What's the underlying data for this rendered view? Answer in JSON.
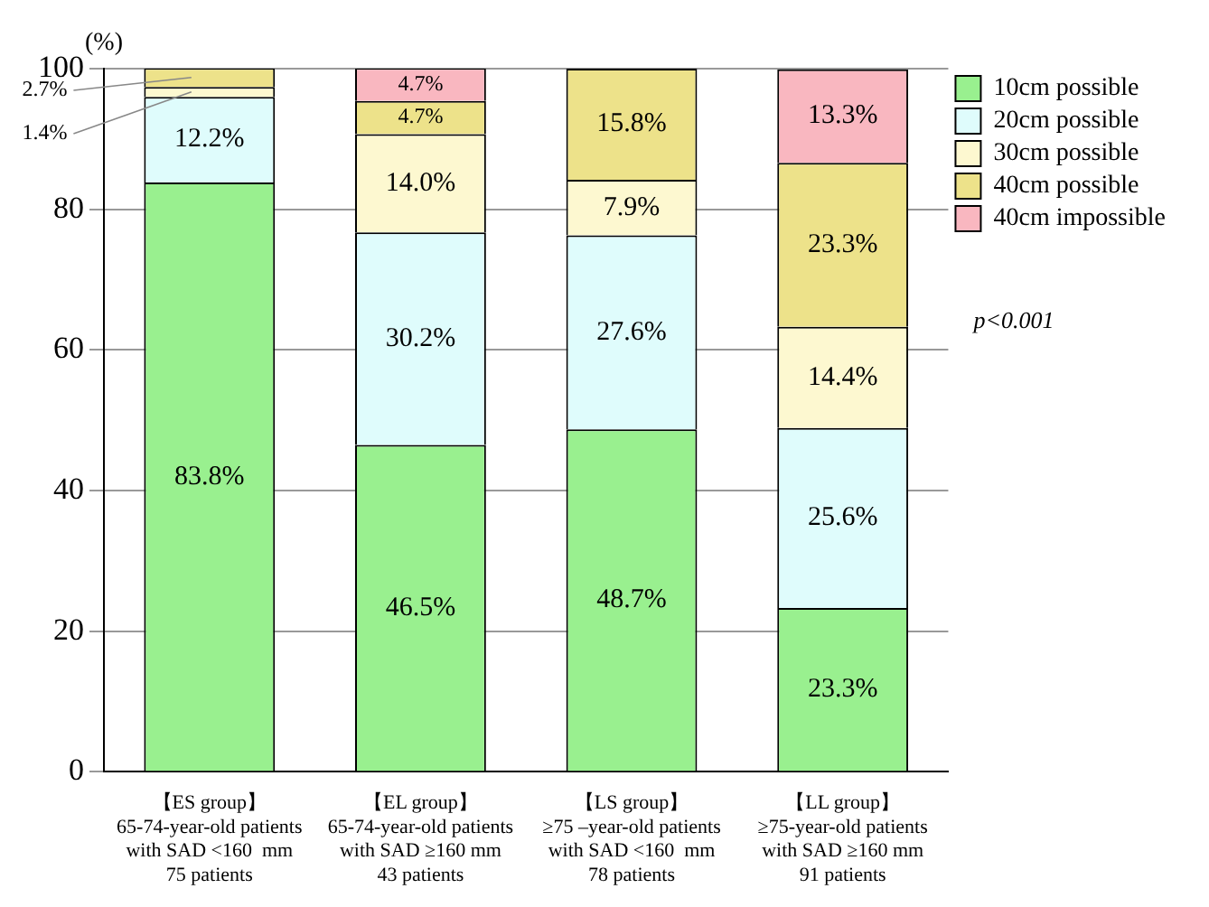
{
  "chart_data": {
    "type": "bar",
    "stacked": true,
    "ylabel": "(%)",
    "categories": [
      "【ES group】\n65-74-year-old patients\nwith SAD <160  mm\n75 patients",
      "【EL group】\n65-74-year-old patients\nwith SAD ≥160 mm\n43 patients",
      "【LS group】\n≥75 –year-old patients\nwith SAD <160  mm\n78 patients",
      "【LL group】\n≥75-year-old patients\nwith SAD ≥160 mm\n91 patients"
    ],
    "series": [
      {
        "name": "10cm possible",
        "color": "#99f08f",
        "values": [
          83.8,
          46.5,
          48.7,
          23.3
        ],
        "value_labels": [
          "83.8%",
          "46.5%",
          "48.7%",
          "23.3%"
        ]
      },
      {
        "name": "20cm possible",
        "color": "#dffcfc",
        "values": [
          12.2,
          30.2,
          27.6,
          25.6
        ],
        "value_labels": [
          "12.2%",
          "30.2%",
          "27.6%",
          "25.6%"
        ]
      },
      {
        "name": "30cm possible",
        "color": "#fdf8d0",
        "values": [
          1.4,
          14.0,
          7.9,
          14.4
        ],
        "value_labels": [
          "1.4%",
          "14.0%",
          "7.9%",
          "14.4%"
        ]
      },
      {
        "name": "40cm possible",
        "color": "#ede28a",
        "values": [
          2.7,
          4.7,
          15.8,
          23.3
        ],
        "value_labels": [
          "2.7%",
          "4.7%",
          "15.8%",
          "23.3%"
        ]
      },
      {
        "name": "40cm impossible",
        "color": "#f9b7c0",
        "values": [
          0,
          4.7,
          0,
          13.3
        ],
        "value_labels": [
          null,
          "4.7%",
          null,
          "13.3%"
        ]
      }
    ],
    "ylim": [
      0,
      100
    ],
    "yticks": [
      0,
      20,
      40,
      60,
      80,
      100
    ],
    "grid": "y",
    "legend": "top right",
    "annotations": [
      "p<0.001"
    ]
  }
}
